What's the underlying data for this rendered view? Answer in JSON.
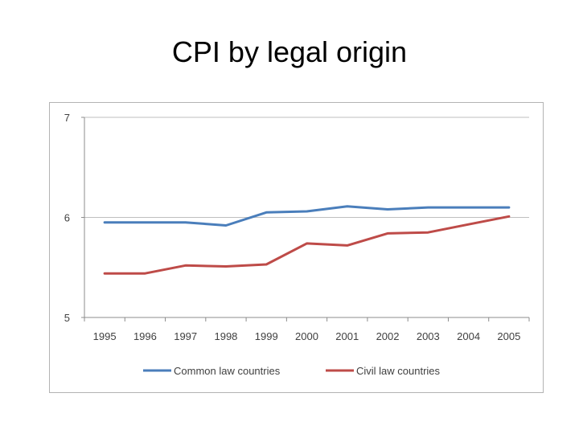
{
  "slide": {
    "title": "CPI by legal origin"
  },
  "chart_data": {
    "type": "line",
    "title": "",
    "xlabel": "",
    "ylabel": "",
    "categories": [
      "1995",
      "1996",
      "1997",
      "1998",
      "1999",
      "2000",
      "2001",
      "2002",
      "2003",
      "2004",
      "2005"
    ],
    "ylim": [
      5,
      7
    ],
    "yticks": [
      "5",
      "6",
      "7"
    ],
    "grid": "horizontal",
    "legend": "bottom",
    "series": [
      {
        "name": "Common law countries",
        "color": "#4a7ebb",
        "values": [
          5.95,
          5.95,
          5.95,
          5.92,
          6.05,
          6.06,
          6.11,
          6.08,
          6.1,
          6.1,
          6.1
        ]
      },
      {
        "name": "Civil law countries",
        "color": "#be4b48",
        "values": [
          5.44,
          5.44,
          5.52,
          5.51,
          5.53,
          5.74,
          5.72,
          5.84,
          5.85,
          5.93,
          6.01
        ]
      }
    ]
  }
}
